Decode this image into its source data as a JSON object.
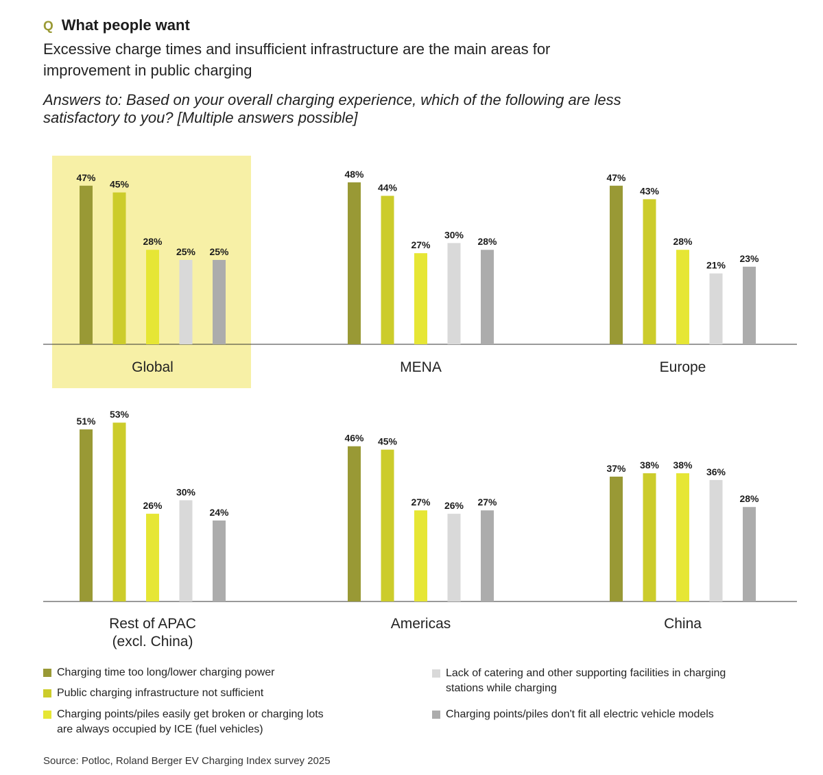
{
  "header": {
    "q_mark": "Q",
    "title": "What people want",
    "subtitle": "Excessive charge times and insufficient infrastructure are the main areas for improvement in public charging",
    "question": "Answers to: Based on your overall charging experience, which of the following are less satisfactory to you? [Multiple answers possible]"
  },
  "chart_data": {
    "type": "bar",
    "unit": "%",
    "highlighted_panel": "Global",
    "series": [
      {
        "name": "Charging time too long/lower charging power",
        "color": "#999935"
      },
      {
        "name": "Public charging infrastructure not sufficient",
        "color": "#cccc2b"
      },
      {
        "name": "Charging points/piles easily get broken or charging lots are always occupied by ICE (fuel vehicles)",
        "color": "#e6e635"
      },
      {
        "name": "Lack of catering and other supporting facilities in charging stations while charging",
        "color": "#d9d9d9"
      },
      {
        "name": "Charging points/piles don't fit all electric vehicle models",
        "color": "#acacac"
      }
    ],
    "panels": [
      {
        "title": [
          "Global"
        ],
        "values": [
          47,
          45,
          28,
          25,
          25
        ]
      },
      {
        "title": [
          "MENA"
        ],
        "values": [
          48,
          44,
          27,
          30,
          28
        ]
      },
      {
        "title": [
          "Europe"
        ],
        "values": [
          47,
          43,
          28,
          21,
          23
        ]
      },
      {
        "title": [
          "Rest of APAC",
          "(excl. China)"
        ],
        "values": [
          51,
          53,
          26,
          30,
          24
        ]
      },
      {
        "title": [
          "Americas"
        ],
        "values": [
          46,
          45,
          27,
          26,
          27
        ]
      },
      {
        "title": [
          "China"
        ],
        "values": [
          37,
          38,
          38,
          36,
          28
        ]
      }
    ]
  },
  "legend": {
    "items": [
      {
        "lines": [
          "Charging time too long/lower charging power"
        ],
        "color": "#999935"
      },
      {
        "lines": [
          "Public charging infrastructure not sufficient"
        ],
        "color": "#cccc2b"
      },
      {
        "lines": [
          "Charging points/piles easily get broken or charging lots",
          "are always occupied by ICE (fuel vehicles)"
        ],
        "color": "#e6e635"
      },
      {
        "lines": [
          "Lack of catering and other supporting facilities in charging",
          "stations while charging"
        ],
        "color": "#d9d9d9"
      },
      {
        "lines": [
          "Charging points/piles don't fit all electric vehicle models"
        ],
        "color": "#acacac"
      }
    ]
  },
  "source": "Source: Potloc, Roland Berger EV Charging Index survey 2025"
}
